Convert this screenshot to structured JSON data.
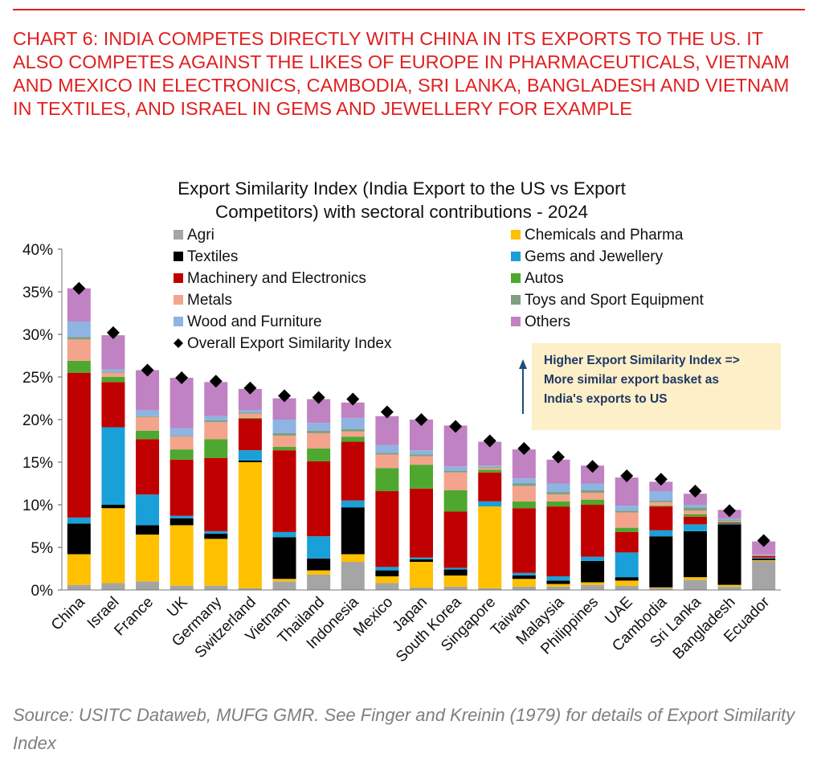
{
  "headline": "CHART 6: INDIA COMPETES DIRECTLY WITH CHINA IN ITS EXPORTS TO THE US. IT ALSO COMPETES AGAINST THE LIKES OF EUROPE IN PHARMACEUTICALS, VIETNAM AND MEXICO IN ELECTRONICS, CAMBODIA, SRI LANKA, BANGLADESH AND VIETNAM IN TEXTILES, AND ISRAEL IN GEMS AND JEWELLERY FOR EXAMPLE",
  "source": "Source: USITC Dataweb, MUFG GMR.  See Finger and Kreinin (1979) for details of Export Similarity Index",
  "annotation": {
    "lines": [
      "Higher Export Similarity Index =>",
      "More similar export basket as",
      "India's exports to US"
    ],
    "bg": "#fdefc8",
    "text_color": "#1f3864",
    "arrow_color": "#1f4e79"
  },
  "chart_data": {
    "type": "bar",
    "stacked": true,
    "title_lines": [
      "Export Similarity Index (India Export to the US vs Export",
      "Competitors) with sectoral contributions - 2024"
    ],
    "ylim": [
      0,
      40
    ],
    "yticks": [
      "0%",
      "5%",
      "10%",
      "15%",
      "20%",
      "25%",
      "30%",
      "35%",
      "40%"
    ],
    "categories": [
      "China",
      "Israel",
      "France",
      "UK",
      "Germany",
      "Switzerland",
      "Vietnam",
      "Thailand",
      "Indonesia",
      "Mexico",
      "Japan",
      "South Korea",
      "Singapore",
      "Taiwan",
      "Malaysia",
      "Philippines",
      "UAE",
      "Cambodia",
      "Sri Lanka",
      "Bangladesh",
      "Ecuador"
    ],
    "series": [
      {
        "name": "Agri",
        "color": "#a5a5a5",
        "values": [
          0.6,
          0.8,
          1.0,
          0.5,
          0.5,
          0.2,
          1.0,
          1.8,
          3.3,
          0.8,
          0.3,
          0.4,
          0.2,
          0.4,
          0.4,
          0.6,
          0.5,
          0.2,
          1.2,
          0.4,
          3.4
        ]
      },
      {
        "name": "Chemicals and Pharma",
        "color": "#ffc000",
        "values": [
          3.6,
          8.8,
          5.5,
          7.1,
          5.5,
          14.8,
          0.3,
          0.5,
          0.9,
          0.8,
          3.0,
          1.3,
          9.6,
          0.9,
          0.3,
          0.3,
          0.6,
          0.1,
          0.3,
          0.2,
          0.1
        ]
      },
      {
        "name": "Textiles",
        "color": "#000000",
        "values": [
          3.6,
          0.4,
          1.1,
          0.8,
          0.6,
          0.2,
          4.9,
          1.4,
          5.5,
          0.7,
          0.3,
          0.7,
          0.0,
          0.4,
          0.4,
          2.5,
          0.4,
          6.0,
          5.4,
          7.1,
          0.2
        ]
      },
      {
        "name": "Gems and Jewellery",
        "color": "#1aa0d8",
        "values": [
          0.7,
          9.1,
          3.6,
          0.3,
          0.3,
          1.2,
          0.6,
          2.6,
          0.8,
          0.4,
          0.2,
          0.2,
          0.6,
          0.3,
          0.5,
          0.5,
          2.9,
          0.7,
          0.8,
          0.1,
          0.1
        ]
      },
      {
        "name": "Machinery and Electronics",
        "color": "#c00000",
        "values": [
          17.0,
          5.3,
          6.5,
          6.6,
          8.6,
          3.7,
          9.6,
          8.8,
          6.9,
          8.9,
          8.1,
          6.6,
          3.4,
          7.6,
          8.2,
          6.1,
          2.4,
          2.8,
          0.9,
          0.1,
          0.2
        ]
      },
      {
        "name": "Autos",
        "color": "#4ea72e",
        "values": [
          1.4,
          0.6,
          1.0,
          1.2,
          2.2,
          0.1,
          0.4,
          1.5,
          0.6,
          2.7,
          2.8,
          2.5,
          0.3,
          0.8,
          0.6,
          0.6,
          0.5,
          0.1,
          0.3,
          0.1,
          0.0
        ]
      },
      {
        "name": "Metals",
        "color": "#f4a48c",
        "values": [
          2.5,
          0.5,
          1.6,
          1.5,
          2.0,
          0.5,
          1.3,
          1.8,
          0.6,
          1.6,
          1.0,
          2.1,
          0.2,
          1.8,
          0.8,
          0.8,
          1.8,
          0.4,
          0.4,
          0.1,
          0.1
        ]
      },
      {
        "name": "Toys and Sport Equipment",
        "color": "#7f9f80",
        "values": [
          0.3,
          0.1,
          0.1,
          0.1,
          0.2,
          0.1,
          0.3,
          0.3,
          0.3,
          0.2,
          0.2,
          0.2,
          0.1,
          0.3,
          0.3,
          0.3,
          0.2,
          0.2,
          0.4,
          0.1,
          0.0
        ]
      },
      {
        "name": "Wood and Furniture",
        "color": "#8db4e2",
        "values": [
          1.8,
          0.3,
          0.7,
          0.9,
          0.5,
          0.3,
          1.6,
          0.9,
          1.3,
          0.9,
          0.5,
          0.5,
          0.2,
          0.6,
          1.0,
          0.8,
          0.6,
          1.1,
          0.3,
          0.2,
          0.1
        ]
      },
      {
        "name": "Others",
        "color": "#c082c2",
        "values": [
          3.9,
          4.0,
          4.7,
          5.9,
          4.0,
          2.5,
          2.5,
          2.8,
          1.8,
          3.4,
          3.6,
          4.8,
          2.8,
          3.4,
          2.8,
          2.1,
          3.3,
          1.1,
          1.3,
          1.0,
          1.5
        ]
      }
    ],
    "overall": {
      "name": "Overall Export Similarity Index",
      "marker": "diamond",
      "values": [
        35.4,
        30.2,
        25.8,
        24.9,
        24.5,
        23.7,
        22.8,
        22.6,
        22.4,
        20.9,
        20.0,
        19.2,
        17.5,
        16.6,
        15.6,
        14.5,
        13.4,
        13.0,
        11.6,
        9.3,
        5.8
      ]
    },
    "legend_location": "top, inside plot, two columns",
    "grid": false
  }
}
